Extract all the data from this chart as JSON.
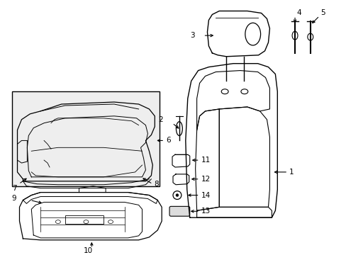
{
  "background_color": "#ffffff",
  "line_color": "#000000",
  "text_color": "#000000",
  "figsize": [
    4.89,
    3.6
  ],
  "dpi": 100
}
